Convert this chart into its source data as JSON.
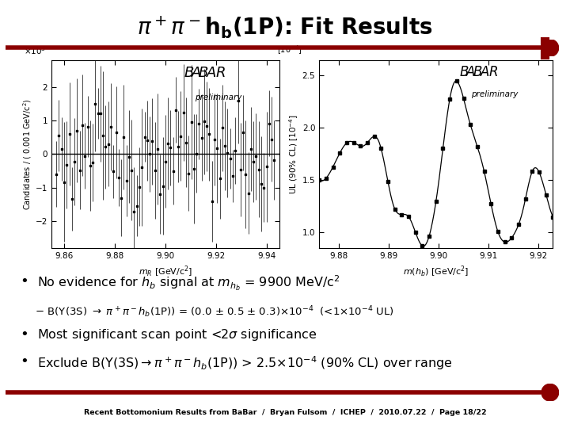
{
  "title": "$\\pi^+\\pi^-\\mathbf{h_b(1P)}$: Fit Results",
  "title_fontsize": 20,
  "bg_color": "#ffffff",
  "bar_color": "#8b0000",
  "footer_text": "Recent Bottomonium Results from BaBar  /  Bryan Fulsom  /  ICHEP  /  2010.07.22  /  Page 18/22",
  "bullet1": "No evidence for $h_b$ signal at $m_{h_b}$ = 9900 MeV/c$^2$",
  "bullet1b": "  $-$ B($\\Upsilon$(3S) $\\to$ $\\pi^+\\pi^- h_b$(1P)) = (0.0 $\\pm$ 0.5 $\\pm$ 0.3)$\\times$10$^{-4}$  (<1$\\times$10$^{-4}$ UL)",
  "bullet2": "Most significant scan point <2$\\sigma$ significance",
  "bullet3": "Exclude B($\\Upsilon$(3S)$\\to$$\\pi^+\\pi^-h_b$(1P)) > 2.5$\\times$10$^{-4}$ (90% CL) over range",
  "left_xlim": [
    9.855,
    9.945
  ],
  "left_ylim": [
    -2.8,
    2.8
  ],
  "left_yticks": [
    -2,
    -1,
    0,
    1,
    2
  ],
  "left_xticks": [
    9.86,
    9.88,
    9.9,
    9.92,
    9.94
  ],
  "right_xlim": [
    9.876,
    9.923
  ],
  "right_ylim": [
    0.85,
    2.65
  ],
  "right_yticks": [
    1.0,
    1.5,
    2.0,
    2.5
  ],
  "right_xticks": [
    9.88,
    9.89,
    9.9,
    9.91,
    9.92
  ]
}
